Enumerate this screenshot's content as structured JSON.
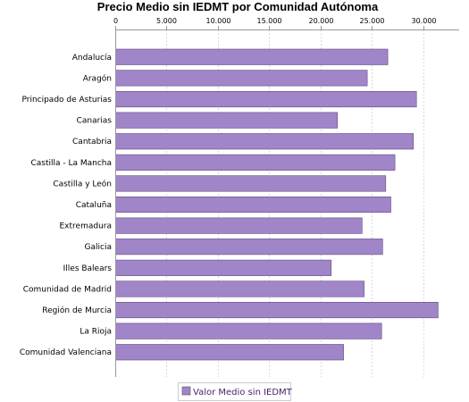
{
  "chart_data": {
    "type": "bar",
    "orientation": "horizontal",
    "title": "Precio Medio sin IEDMT por Comunidad Autónoma",
    "xlabel": "",
    "ylabel": "",
    "xlim": [
      0,
      33500
    ],
    "xticks": [
      0,
      5000,
      10000,
      15000,
      20000,
      25000,
      30000
    ],
    "xtick_labels": [
      "0",
      "5.000",
      "10.000",
      "15.000",
      "20.000",
      "25.000",
      "30.000"
    ],
    "x_axis_position": "top",
    "grid": true,
    "legend_position": "bottom",
    "categories": [
      "Andalucía",
      "Aragón",
      "Principado de Asturias",
      "Canarias",
      "Cantabria",
      "Castilla - La Mancha",
      "Castilla y León",
      "Cataluña",
      "Extremadura",
      "Galicia",
      "Illes Balears",
      "Comunidad de Madrid",
      "Región de Murcia",
      "La Rioja",
      "Comunidad Valenciana"
    ],
    "series": [
      {
        "name": "Valor Medio sin IEDMT",
        "color": "#a185c9",
        "values": [
          26500,
          24500,
          29300,
          21600,
          29000,
          27200,
          26300,
          26800,
          24000,
          26000,
          21000,
          24200,
          31400,
          25900,
          22200
        ]
      }
    ]
  }
}
